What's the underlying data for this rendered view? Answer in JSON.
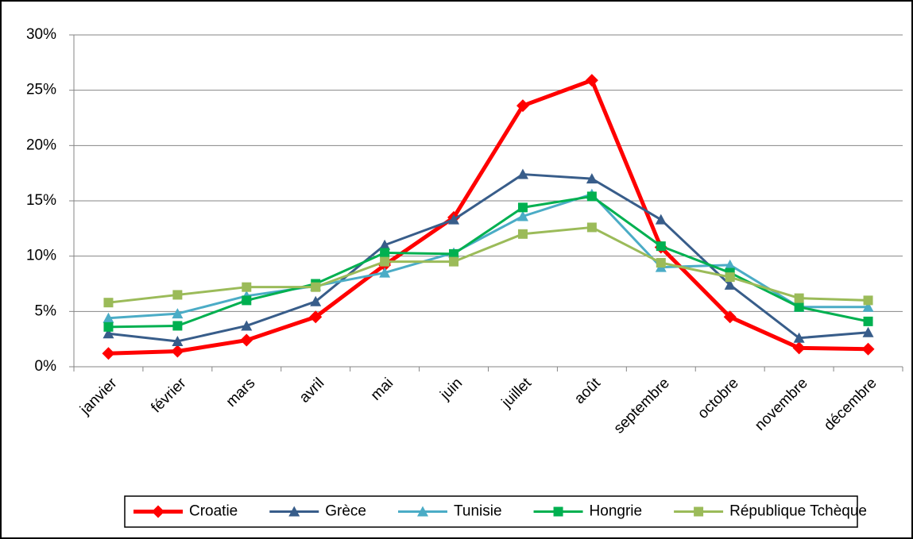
{
  "chart_data": {
    "type": "line",
    "categories": [
      "janvier",
      "février",
      "mars",
      "avril",
      "mai",
      "juin",
      "juillet",
      "août",
      "septembre",
      "octobre",
      "novembre",
      "décembre"
    ],
    "series": [
      {
        "name": "Croatie",
        "color": "#ff0000",
        "marker": "diamond",
        "values": [
          1.2,
          1.4,
          2.4,
          4.5,
          9.2,
          13.5,
          23.6,
          25.9,
          10.8,
          4.5,
          1.7,
          1.6
        ]
      },
      {
        "name": "Grèce",
        "color": "#385d8a",
        "marker": "triangle",
        "values": [
          3.0,
          2.3,
          3.7,
          5.9,
          11.0,
          13.3,
          17.4,
          17.0,
          13.3,
          7.4,
          2.6,
          3.1
        ]
      },
      {
        "name": "Tunisie",
        "color": "#4bacc6",
        "marker": "triangle",
        "values": [
          4.4,
          4.8,
          6.4,
          7.3,
          8.5,
          10.3,
          13.6,
          15.6,
          9.0,
          9.2,
          5.4,
          5.4
        ]
      },
      {
        "name": "Hongrie",
        "color": "#00b050",
        "marker": "square",
        "values": [
          3.6,
          3.7,
          6.0,
          7.5,
          10.3,
          10.2,
          14.4,
          15.4,
          10.9,
          8.5,
          5.4,
          4.1
        ]
      },
      {
        "name": "République Tchèque",
        "color": "#9bbb59",
        "marker": "square",
        "values": [
          5.8,
          6.5,
          7.2,
          7.2,
          9.5,
          9.5,
          12.0,
          12.6,
          9.4,
          8.1,
          6.2,
          6.0
        ]
      }
    ],
    "ylim": [
      0,
      30
    ],
    "yticks": [
      {
        "value": 0,
        "label": "0%"
      },
      {
        "value": 5,
        "label": "5%"
      },
      {
        "value": 10,
        "label": "10%"
      },
      {
        "value": 15,
        "label": "15%"
      },
      {
        "value": 20,
        "label": "20%"
      },
      {
        "value": 25,
        "label": "25%"
      },
      {
        "value": 30,
        "label": "30%"
      }
    ],
    "grid": true,
    "legend": "bottom"
  }
}
